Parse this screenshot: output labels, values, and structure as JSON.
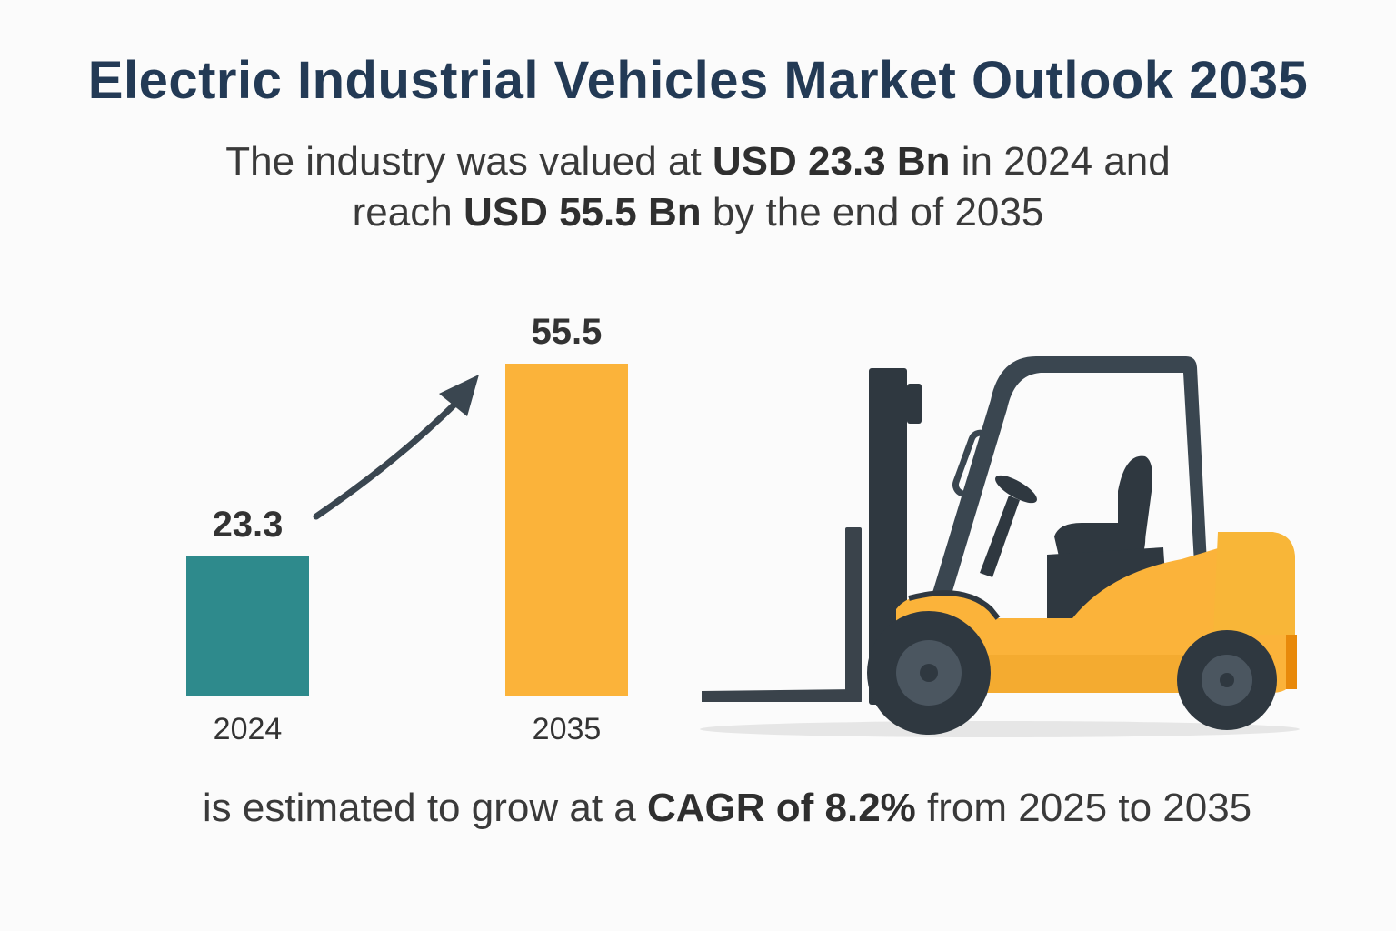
{
  "header": {
    "title": "Electric Industrial Vehicles Market Outlook 2035",
    "line1_a": "The industry was valued at ",
    "line1_b": "USD 23.3 Bn",
    "line1_c": " in 2024 and",
    "line2_a": "reach ",
    "line2_b": "USD 55.5 Bn",
    "line2_c": " by the end of 2035"
  },
  "footer": {
    "a": "is estimated to grow at a ",
    "b": "CAGR of 8.2%",
    "c": " from 2025 to 2035"
  },
  "illustration": {
    "icon": "forklift-icon"
  },
  "chart_data": {
    "type": "bar",
    "categories": [
      "2024",
      "2035"
    ],
    "values": [
      23.3,
      55.5
    ],
    "value_labels": [
      "23.3",
      "55.5"
    ],
    "colors": [
      "#2e8a8c",
      "#fbb33a"
    ],
    "arrow": "growth arrow from 2024 bar to 2035 bar",
    "title": "",
    "xlabel": "",
    "ylabel": "",
    "grid": false
  }
}
